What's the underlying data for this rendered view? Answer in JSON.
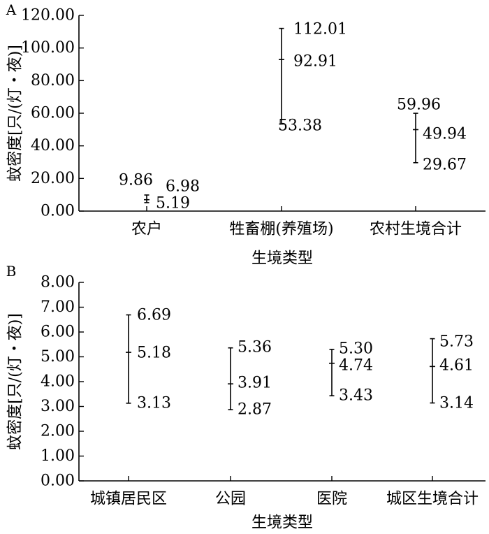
{
  "chart_data": [
    {
      "panel": "A",
      "type": "range",
      "xlabel": "生境类型",
      "ylabel": "蚊密度[只/(灯・夜)]",
      "ylim": [
        0,
        120
      ],
      "yticks": [
        "0.00",
        "20.00",
        "40.00",
        "60.00",
        "80.00",
        "100.00",
        "120.00"
      ],
      "categories": [
        "农户",
        "牲畜棚(养殖场)",
        "农村生境合计"
      ],
      "series": [
        {
          "category": "农户",
          "max": 9.86,
          "mean": 6.98,
          "min": 5.19,
          "labels": {
            "max": "9.86",
            "mean": "6.98",
            "min": "5.19"
          }
        },
        {
          "category": "牲畜棚(养殖场)",
          "max": 112.01,
          "mean": 92.91,
          "min": 53.38,
          "labels": {
            "max": "112.01",
            "mean": "92.91",
            "min": "53.38"
          }
        },
        {
          "category": "农村生境合计",
          "max": 59.96,
          "mean": 49.94,
          "min": 29.67,
          "labels": {
            "max": "59.96",
            "mean": "49.94",
            "min": "29.67"
          }
        }
      ]
    },
    {
      "panel": "B",
      "type": "range",
      "xlabel": "生境类型",
      "ylabel": "蚊密度[只/(灯・夜)]",
      "ylim": [
        0,
        8
      ],
      "yticks": [
        "0.00",
        "1.00",
        "2.00",
        "3.00",
        "4.00",
        "5.00",
        "6.00",
        "7.00",
        "8.00"
      ],
      "categories": [
        "城镇居民区",
        "公园",
        "医院",
        "城区生境合计"
      ],
      "series": [
        {
          "category": "城镇居民区",
          "max": 6.69,
          "mean": 5.18,
          "min": 3.13,
          "labels": {
            "max": "6.69",
            "mean": "5.18",
            "min": "3.13"
          }
        },
        {
          "category": "公园",
          "max": 5.36,
          "mean": 3.91,
          "min": 2.87,
          "labels": {
            "max": "5.36",
            "mean": "3.91",
            "min": "2.87"
          }
        },
        {
          "category": "医院",
          "max": 5.3,
          "mean": 4.74,
          "min": 3.43,
          "labels": {
            "max": "5.30",
            "mean": "4.74",
            "min": "3.43"
          }
        },
        {
          "category": "城区生境合计",
          "max": 5.73,
          "mean": 4.61,
          "min": 3.14,
          "labels": {
            "max": "5.73",
            "mean": "4.61",
            "min": "3.14"
          }
        }
      ]
    }
  ]
}
